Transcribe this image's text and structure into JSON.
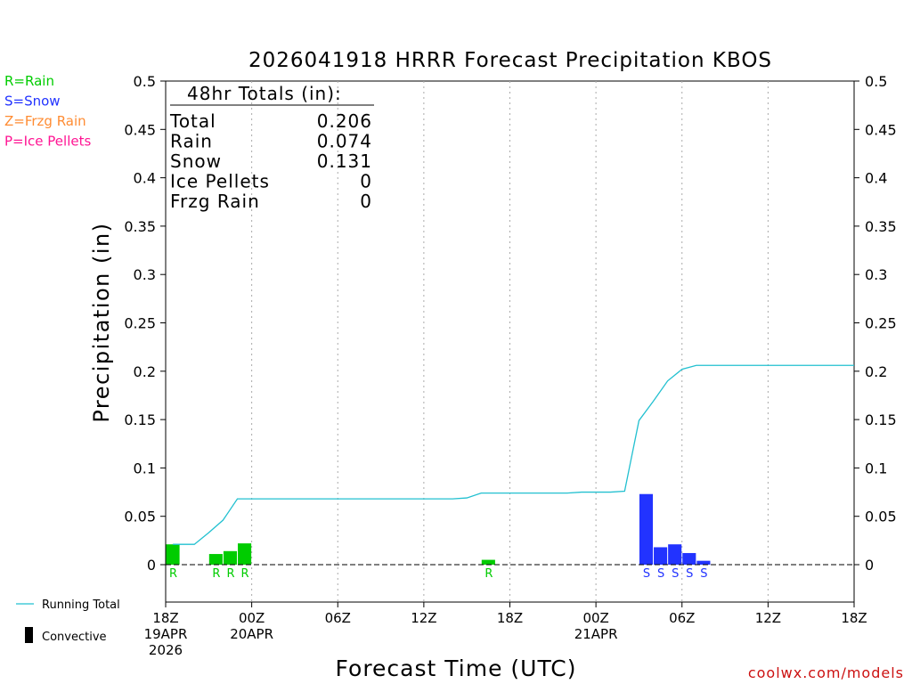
{
  "chart_data": {
    "type": "bar",
    "title": "2026041918 HRRR Forecast Precipitation KBOS",
    "xlabel": "Forecast Time (UTC)",
    "ylabel": "Precipitation (in)",
    "ylim": [
      0,
      0.5
    ],
    "yticks": [
      0,
      0.05,
      0.1,
      0.15,
      0.2,
      0.25,
      0.3,
      0.35,
      0.4,
      0.45,
      0.5
    ],
    "ytick_labels": [
      "0",
      "0.05",
      "0.1",
      "0.15",
      "0.2",
      "0.25",
      "0.3",
      "0.35",
      "0.4",
      "0.45",
      "0.5"
    ],
    "xlim_hours": [
      0,
      48
    ],
    "xticks": [
      {
        "hour": 0,
        "lines": [
          "18Z",
          "19APR",
          "2026"
        ]
      },
      {
        "hour": 6,
        "lines": [
          "00Z",
          "20APR"
        ]
      },
      {
        "hour": 12,
        "lines": [
          "06Z"
        ]
      },
      {
        "hour": 18,
        "lines": [
          "12Z"
        ]
      },
      {
        "hour": 24,
        "lines": [
          "18Z"
        ]
      },
      {
        "hour": 30,
        "lines": [
          "00Z",
          "21APR"
        ]
      },
      {
        "hour": 36,
        "lines": [
          "06Z"
        ]
      },
      {
        "hour": 42,
        "lines": [
          "12Z"
        ]
      },
      {
        "hour": 48,
        "lines": [
          "18Z"
        ]
      }
    ],
    "grid": "vertical dotted at 6h",
    "precip_type_legend": [
      {
        "label": "R=Rain",
        "color": "#00cc00"
      },
      {
        "label": "S=Snow",
        "color": "#2233ff"
      },
      {
        "label": "Z=Frzg Rain",
        "color": "#ff8c33"
      },
      {
        "label": "P=Ice Pellets",
        "color": "#ff1493"
      }
    ],
    "bars": [
      {
        "hour": 1,
        "value": 0.021,
        "type": "R"
      },
      {
        "hour": 4,
        "value": 0.011,
        "type": "R"
      },
      {
        "hour": 5,
        "value": 0.014,
        "type": "R"
      },
      {
        "hour": 6,
        "value": 0.022,
        "type": "R"
      },
      {
        "hour": 23,
        "value": 0.005,
        "type": "R"
      },
      {
        "hour": 34,
        "value": 0.073,
        "type": "S"
      },
      {
        "hour": 35,
        "value": 0.018,
        "type": "S"
      },
      {
        "hour": 36,
        "value": 0.021,
        "type": "S"
      },
      {
        "hour": 37,
        "value": 0.012,
        "type": "S"
      },
      {
        "hour": 38,
        "value": 0.004,
        "type": "S"
      }
    ],
    "running_total": {
      "name": "Running Total",
      "color": "#22c0d0",
      "points": [
        [
          0.5,
          0.021
        ],
        [
          1,
          0.021
        ],
        [
          2,
          0.021
        ],
        [
          3,
          0.033
        ],
        [
          4,
          0.046
        ],
        [
          5,
          0.068
        ],
        [
          6,
          0.068
        ],
        [
          8,
          0.068
        ],
        [
          10,
          0.068
        ],
        [
          12,
          0.068
        ],
        [
          14,
          0.068
        ],
        [
          16,
          0.068
        ],
        [
          18,
          0.068
        ],
        [
          20,
          0.068
        ],
        [
          21,
          0.069
        ],
        [
          22,
          0.074
        ],
        [
          24,
          0.074
        ],
        [
          26,
          0.074
        ],
        [
          28,
          0.074
        ],
        [
          29,
          0.075
        ],
        [
          31,
          0.075
        ],
        [
          32,
          0.076
        ],
        [
          33,
          0.149
        ],
        [
          34,
          0.169
        ],
        [
          35,
          0.19
        ],
        [
          36,
          0.202
        ],
        [
          37,
          0.206
        ],
        [
          40,
          0.206
        ],
        [
          44,
          0.206
        ],
        [
          48,
          0.206
        ]
      ]
    },
    "totals_box": {
      "header": "48hr Totals (in):",
      "rows": [
        {
          "label": "Total",
          "value": "0.206"
        },
        {
          "label": "Rain",
          "value": "0.074"
        },
        {
          "label": "Snow",
          "value": "0.131"
        },
        {
          "label": "Ice Pellets",
          "value": "0"
        },
        {
          "label": "Frzg Rain",
          "value": "0"
        }
      ]
    },
    "bottom_legend": [
      {
        "label": "Running Total"
      },
      {
        "label": "Convective"
      }
    ],
    "credit": "coolwx.com/models"
  }
}
